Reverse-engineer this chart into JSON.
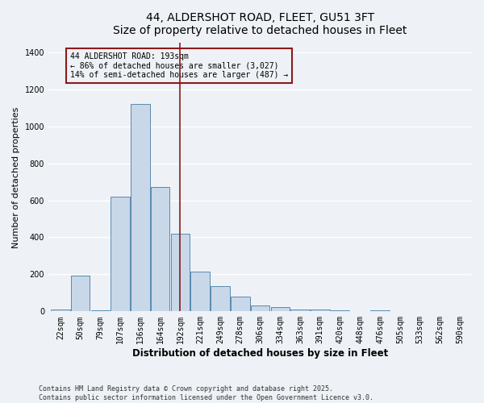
{
  "title_line1": "44, ALDERSHOT ROAD, FLEET, GU51 3FT",
  "title_line2": "Size of property relative to detached houses in Fleet",
  "xlabel": "Distribution of detached houses by size in Fleet",
  "ylabel": "Number of detached properties",
  "categories": [
    "22sqm",
    "50sqm",
    "79sqm",
    "107sqm",
    "136sqm",
    "164sqm",
    "192sqm",
    "221sqm",
    "249sqm",
    "278sqm",
    "306sqm",
    "334sqm",
    "363sqm",
    "391sqm",
    "420sqm",
    "448sqm",
    "476sqm",
    "505sqm",
    "533sqm",
    "562sqm",
    "590sqm"
  ],
  "values": [
    10,
    195,
    5,
    620,
    1120,
    670,
    420,
    215,
    135,
    80,
    30,
    25,
    10,
    10,
    5,
    2,
    4,
    1,
    0,
    0,
    0
  ],
  "bar_color": "#c8d8e8",
  "bar_edge_color": "#5a8ab0",
  "vline_x_index": 6,
  "vline_color": "#8b1a1a",
  "annotation_text": "44 ALDERSHOT ROAD: 193sqm\n← 86% of detached houses are smaller (3,027)\n14% of semi-detached houses are larger (487) →",
  "annotation_box_color": "#8b1a1a",
  "ylim": [
    0,
    1450
  ],
  "yticks": [
    0,
    200,
    400,
    600,
    800,
    1000,
    1200,
    1400
  ],
  "footnote": "Contains HM Land Registry data © Crown copyright and database right 2025.\nContains public sector information licensed under the Open Government Licence v3.0.",
  "background_color": "#eef2f6",
  "grid_color": "#ffffff",
  "title_fontsize": 10,
  "axis_label_fontsize": 8.5,
  "tick_fontsize": 7,
  "ylabel_fontsize": 8
}
